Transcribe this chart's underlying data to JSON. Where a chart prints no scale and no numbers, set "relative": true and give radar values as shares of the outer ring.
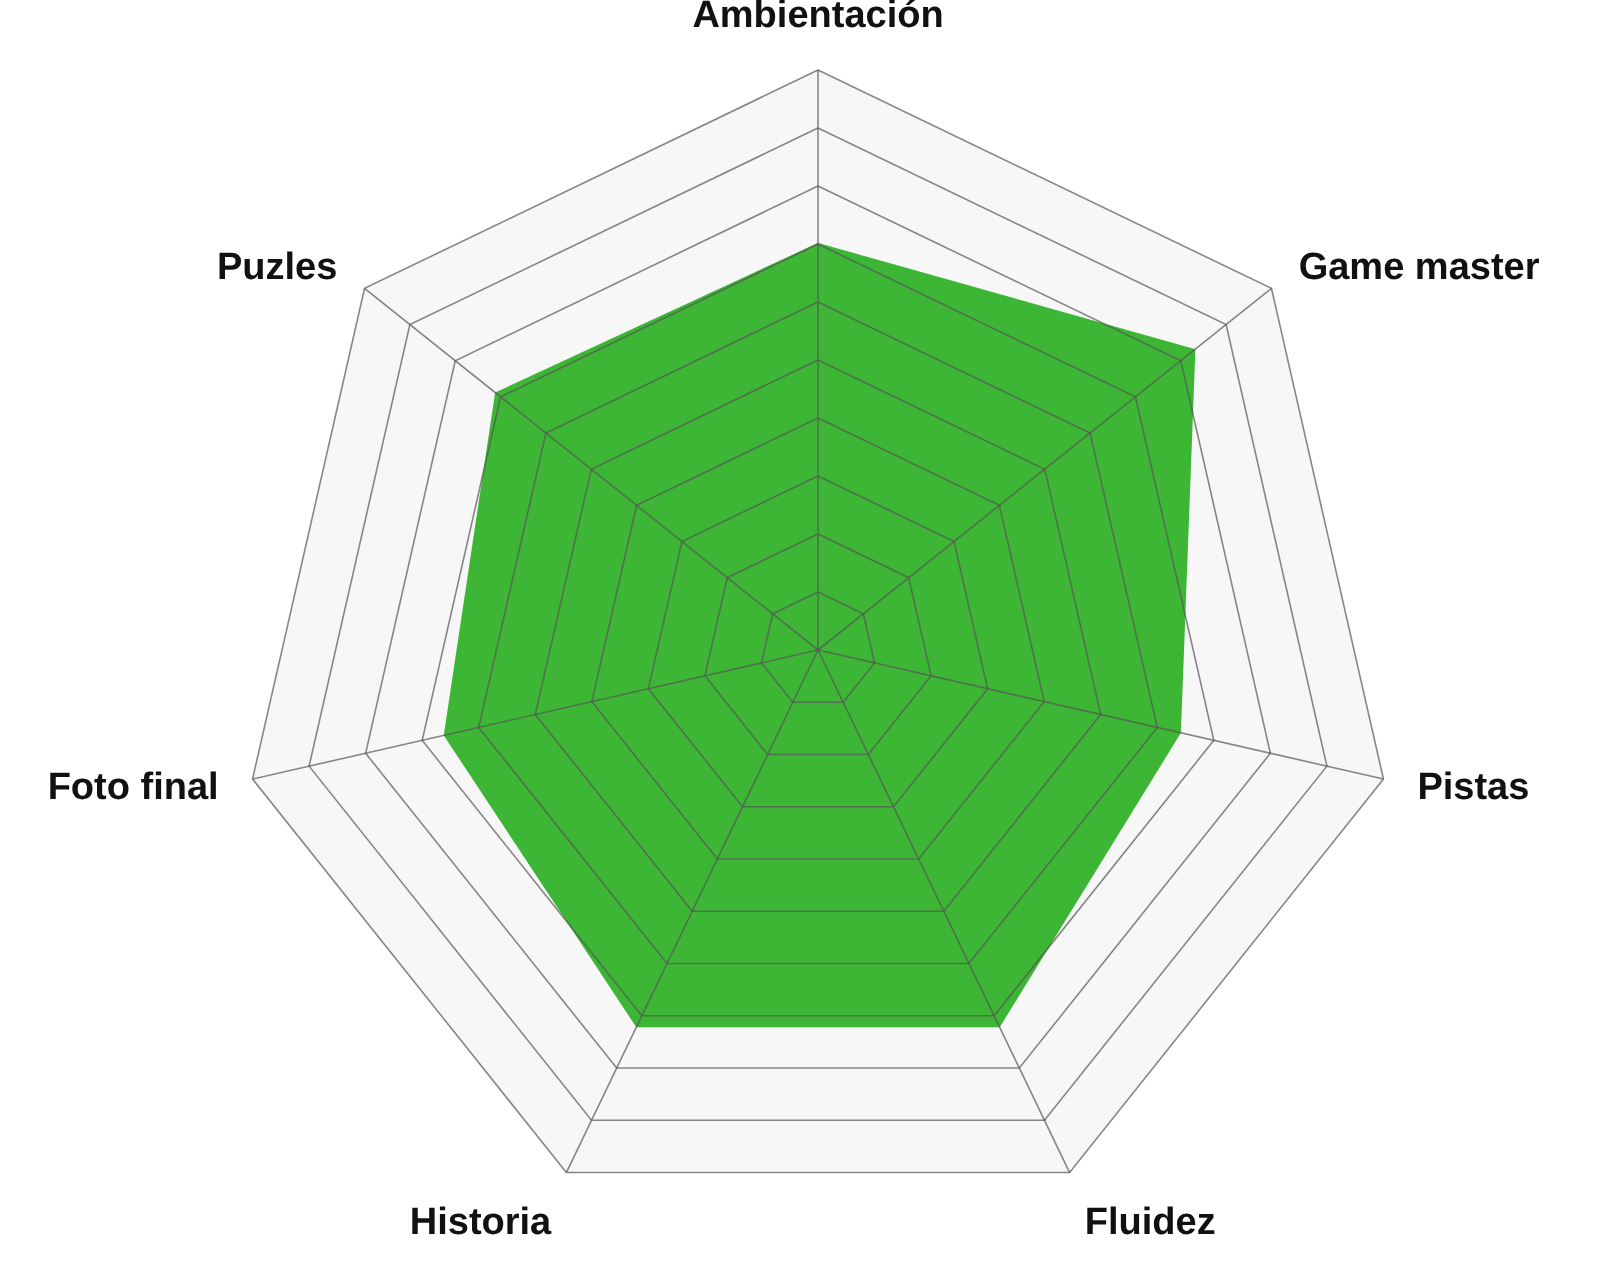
{
  "chart_data": {
    "type": "radar",
    "categories": [
      "Ambientación",
      "Game master",
      "Pistas",
      "Fluidez",
      "Historia",
      "Foto final",
      "Puzles"
    ],
    "series": [
      {
        "color": "#3cb634",
        "values": [
          0.7,
          0.83,
          0.64,
          0.72,
          0.72,
          0.66,
          0.71
        ]
      }
    ],
    "relative": true,
    "grid": true
  }
}
